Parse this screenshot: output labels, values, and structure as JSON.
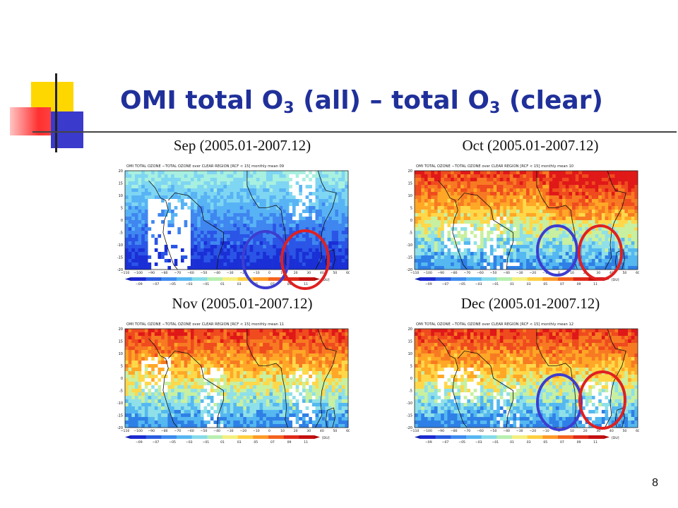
{
  "slide": {
    "title_main": "OMI total O",
    "title_sub1": "3",
    "title_mid": " (all) – total O",
    "title_sub2": "3",
    "title_end": " (clear)",
    "page_number": "8",
    "colors": {
      "title": "#20309a",
      "accent_yellow": "#ffd700",
      "accent_red": "#ff2020",
      "accent_blue": "#3a3acc",
      "circle_blue": "#3d3dd0",
      "circle_red": "#e02020"
    }
  },
  "panels": [
    {
      "title": "Sep (2005.01-2007.12)",
      "month": "09",
      "style": "blue"
    },
    {
      "title": "Oct (2005.01-2007.12)",
      "month": "10",
      "style": "red"
    },
    {
      "title": "Nov (2005.01-2007.12)",
      "month": "11",
      "style": "red"
    },
    {
      "title": "Dec (2005.01-2007.12)",
      "month": "12",
      "style": "red"
    }
  ],
  "map_common": {
    "header_prefix": "OMI TOTAL OZONE −TOTAL OZONE over CLEAR REGION [RCF < 15] monthly mean ",
    "lat_labels": [
      "20",
      "15",
      "10",
      "5",
      "0",
      "-5",
      "-10",
      "-15",
      "-20"
    ],
    "lon_labels": [
      "−110",
      "−100",
      "−90",
      "−80",
      "−70",
      "−60",
      "−50",
      "−40",
      "−30",
      "−20",
      "−10",
      "0",
      "10",
      "20",
      "30",
      "40",
      "50",
      "60"
    ],
    "colorbar_labels": [
      "−09",
      "−07",
      "−05",
      "−03",
      "−01",
      "01",
      "03",
      "05",
      "07",
      "09",
      "11"
    ],
    "unit": "[DU]"
  }
}
